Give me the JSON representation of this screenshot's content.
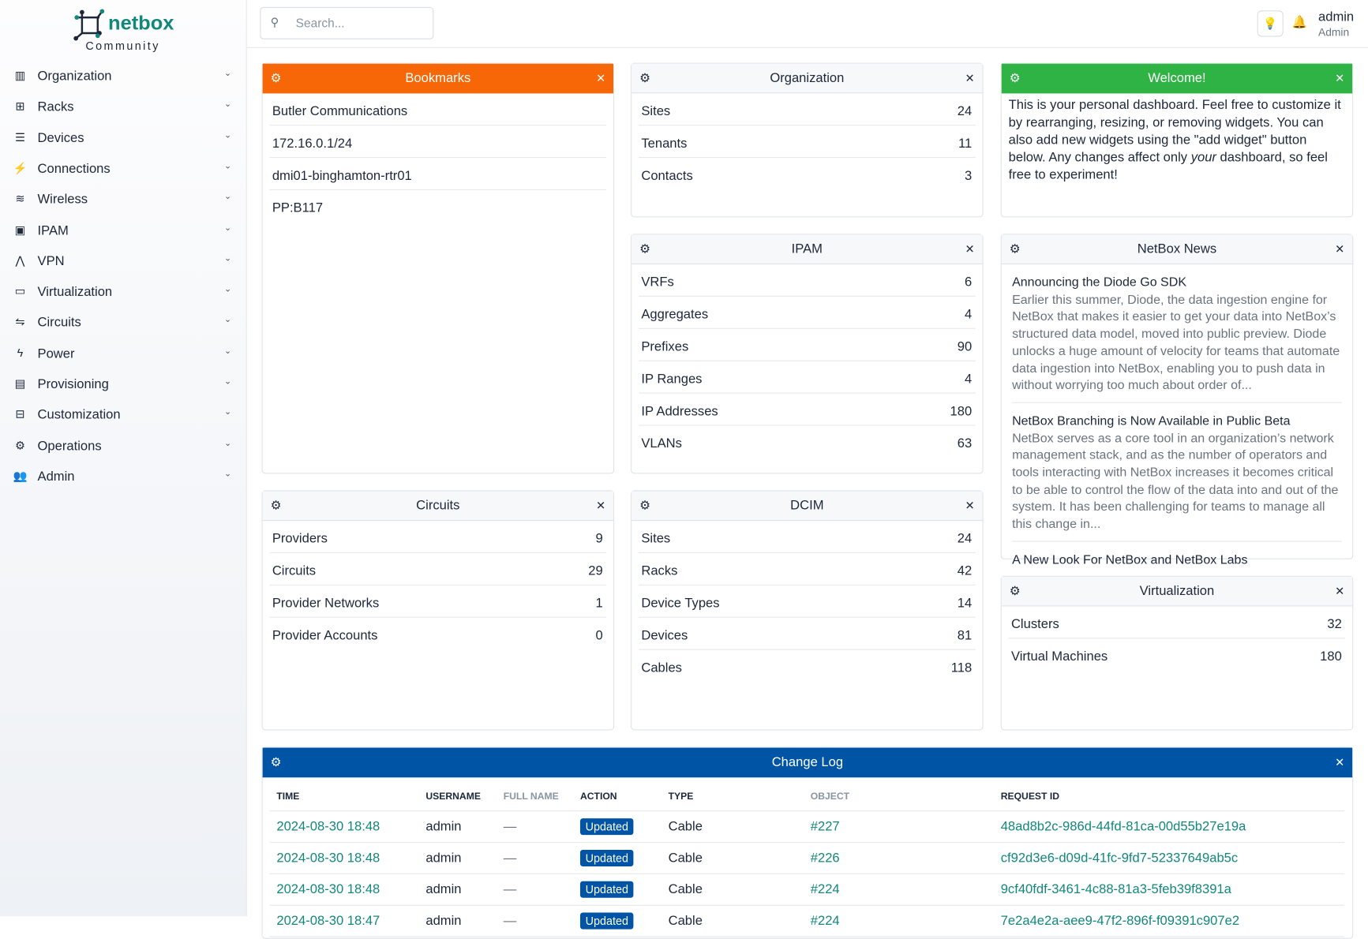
{
  "brand": {
    "name": "netbox",
    "edition": "Community",
    "accent": "#12877c"
  },
  "sidebar": {
    "items": [
      {
        "label": "Organization",
        "icon": "domain-icon",
        "glyph": "▥"
      },
      {
        "label": "Racks",
        "icon": "rack-icon",
        "glyph": "⊞"
      },
      {
        "label": "Devices",
        "icon": "server-icon",
        "glyph": "☰"
      },
      {
        "label": "Connections",
        "icon": "plug-icon",
        "glyph": "⚡"
      },
      {
        "label": "Wireless",
        "icon": "wifi-icon",
        "glyph": "≋"
      },
      {
        "label": "IPAM",
        "icon": "counter-icon",
        "glyph": "▣"
      },
      {
        "label": "VPN",
        "icon": "tunnel-icon",
        "glyph": "⋀"
      },
      {
        "label": "Virtualization",
        "icon": "monitor-icon",
        "glyph": "▭"
      },
      {
        "label": "Circuits",
        "icon": "transit-icon",
        "glyph": "⇋"
      },
      {
        "label": "Power",
        "icon": "flash-icon",
        "glyph": "ϟ"
      },
      {
        "label": "Provisioning",
        "icon": "file-document-icon",
        "glyph": "▤"
      },
      {
        "label": "Customization",
        "icon": "toolbox-icon",
        "glyph": "⊟"
      },
      {
        "label": "Operations",
        "icon": "cogs-icon",
        "glyph": "⚙"
      },
      {
        "label": "Admin",
        "icon": "account-multiple-icon",
        "glyph": "👥"
      }
    ]
  },
  "header": {
    "search_placeholder": "Search...",
    "username": "admin",
    "role": "Admin"
  },
  "widgets": {
    "bookmarks": {
      "title": "Bookmarks",
      "color": "#f76707",
      "items": [
        "Butler Communications",
        "172.16.0.1/24",
        "dmi01-binghamton-rtr01",
        "PP:B117"
      ]
    },
    "organization": {
      "title": "Organization",
      "rows": [
        {
          "k": "Sites",
          "v": "24"
        },
        {
          "k": "Tenants",
          "v": "11"
        },
        {
          "k": "Contacts",
          "v": "3"
        }
      ]
    },
    "welcome": {
      "title": "Welcome!",
      "color": "#2fb344",
      "text_before": "This is your personal dashboard. Feel free to customize it by rearranging, resizing, or removing widgets. You can also add new widgets using the \"add widget\" button below. Any changes affect only ",
      "text_em": "your",
      "text_after": " dashboard, so feel free to experiment!"
    },
    "ipam": {
      "title": "IPAM",
      "rows": [
        {
          "k": "VRFs",
          "v": "6"
        },
        {
          "k": "Aggregates",
          "v": "4"
        },
        {
          "k": "Prefixes",
          "v": "90"
        },
        {
          "k": "IP Ranges",
          "v": "4"
        },
        {
          "k": "IP Addresses",
          "v": "180"
        },
        {
          "k": "VLANs",
          "v": "63"
        }
      ]
    },
    "news": {
      "title": "NetBox News",
      "items": [
        {
          "title": "Announcing the Diode Go SDK",
          "desc": "Earlier this summer, Diode, the data ingestion engine for NetBox that makes it easier to get your data into NetBox’s structured data model, moved into public preview. Diode unlocks a huge amount of velocity for teams that automate data ingestion into NetBox, enabling you to push data in without worrying too much about order of..."
        },
        {
          "title": "NetBox Branching is Now Available in Public Beta",
          "desc": "NetBox serves as a core tool in an organization’s network management stack, and as the number of operators and tools interacting with NetBox increases it becomes critical to be able to control the flow of the data into and out of the system. It has been challenging for teams to manage all this change in..."
        },
        {
          "title": "A New Look For NetBox and NetBox Labs",
          "desc": ""
        }
      ]
    },
    "circuits": {
      "title": "Circuits",
      "rows": [
        {
          "k": "Providers",
          "v": "9"
        },
        {
          "k": "Circuits",
          "v": "29"
        },
        {
          "k": "Provider Networks",
          "v": "1"
        },
        {
          "k": "Provider Accounts",
          "v": "0"
        }
      ]
    },
    "dcim": {
      "title": "DCIM",
      "rows": [
        {
          "k": "Sites",
          "v": "24"
        },
        {
          "k": "Racks",
          "v": "42"
        },
        {
          "k": "Device Types",
          "v": "14"
        },
        {
          "k": "Devices",
          "v": "81"
        },
        {
          "k": "Cables",
          "v": "118"
        }
      ]
    },
    "virtualization": {
      "title": "Virtualization",
      "rows": [
        {
          "k": "Clusters",
          "v": "32"
        },
        {
          "k": "Virtual Machines",
          "v": "180"
        }
      ]
    },
    "changelog": {
      "title": "Change Log",
      "color": "#0054a6",
      "columns": [
        "TIME",
        "USERNAME",
        "FULL NAME",
        "ACTION",
        "TYPE",
        "OBJECT",
        "REQUEST ID"
      ],
      "rows": [
        {
          "time": "2024-08-30 18:48",
          "user": "admin",
          "full": "—",
          "action": "Updated",
          "type": "Cable",
          "object": "#227",
          "req": "48ad8b2c-986d-44fd-81ca-00d55b27e19a"
        },
        {
          "time": "2024-08-30 18:48",
          "user": "admin",
          "full": "—",
          "action": "Updated",
          "type": "Cable",
          "object": "#226",
          "req": "cf92d3e6-d09d-41fc-9fd7-52337649ab5c"
        },
        {
          "time": "2024-08-30 18:48",
          "user": "admin",
          "full": "—",
          "action": "Updated",
          "type": "Cable",
          "object": "#224",
          "req": "9cf40fdf-3461-4c88-81a3-5feb39f8391a"
        },
        {
          "time": "2024-08-30 18:47",
          "user": "admin",
          "full": "—",
          "action": "Updated",
          "type": "Cable",
          "object": "#224",
          "req": "7e2a4e2a-aee9-47f2-896f-f09391c907e2"
        }
      ]
    }
  }
}
